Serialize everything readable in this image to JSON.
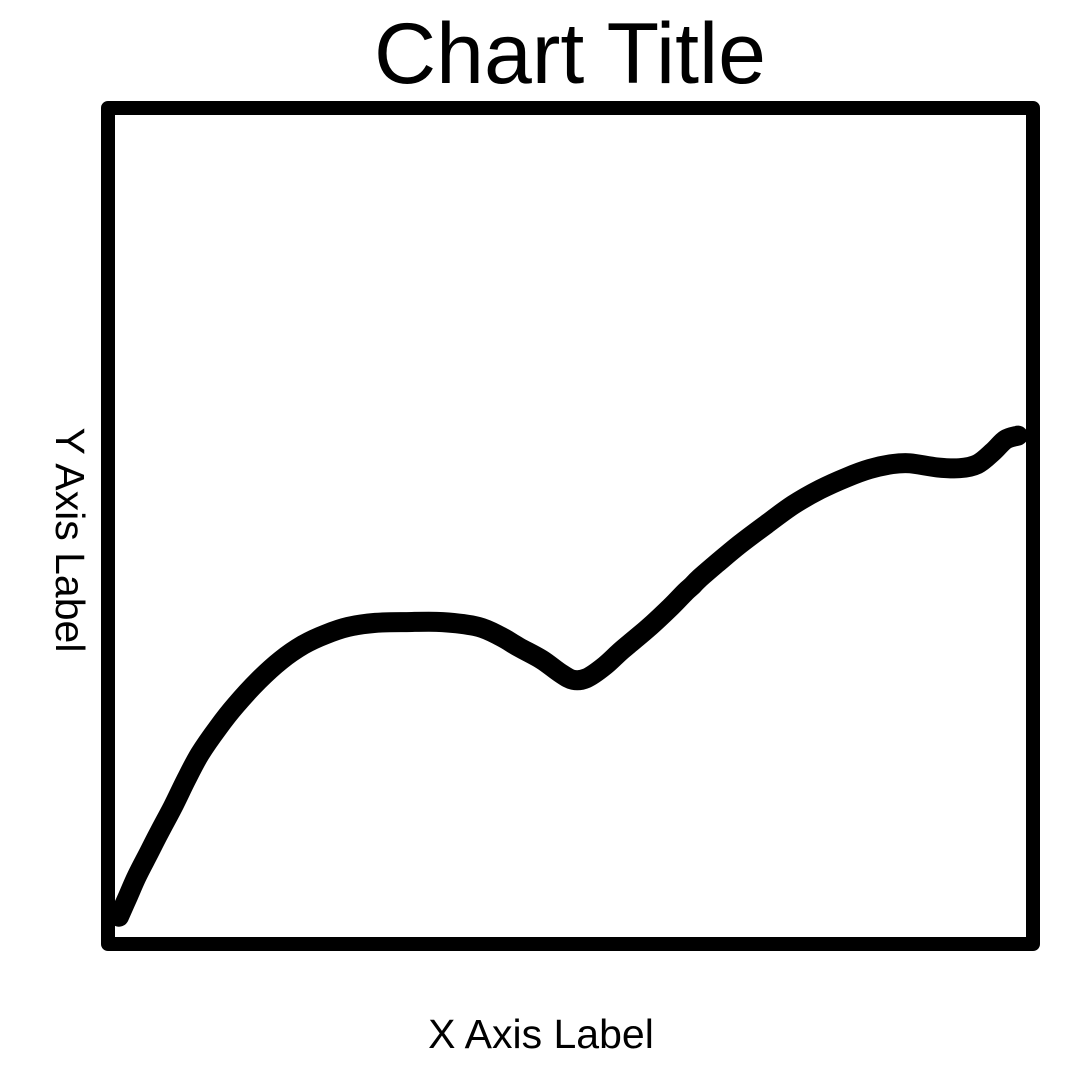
{
  "chart_data": {
    "type": "line",
    "title": "Chart Title",
    "xlabel": "X Axis Label",
    "ylabel": "Y Axis Label",
    "xlim": [
      0,
      100
    ],
    "ylim": [
      0,
      100
    ],
    "grid": false,
    "colors": {
      "line": "#000000",
      "frame": "#000000",
      "background": "#ffffff"
    },
    "series": [
      {
        "x": [
          0,
          1,
          2,
          3.3,
          4.5,
          6,
          7.5,
          9,
          11,
          13,
          15.5,
          18,
          20.5,
          23,
          25.5,
          28.5,
          32,
          36,
          40,
          42.5,
          44.5,
          47,
          49,
          50.5,
          52,
          54,
          56,
          59,
          61.5,
          63,
          63.8,
          64.5,
          66.5,
          69,
          72,
          75,
          78,
          81,
          83.5,
          86,
          88,
          91,
          93.5,
          95.5,
          97.2,
          98.6,
          100
        ],
        "y": [
          2,
          4.5,
          7,
          9.8,
          12.4,
          15.5,
          18.9,
          22,
          25.2,
          28,
          31,
          33.5,
          35.4,
          36.7,
          37.6,
          38.1,
          38.2,
          38.2,
          37.6,
          36.4,
          35.1,
          33.6,
          32,
          31.1,
          31.3,
          32.8,
          34.8,
          37.6,
          40.2,
          41.9,
          42.7,
          43.5,
          45.4,
          47.7,
          50.2,
          52.6,
          54.5,
          56,
          57,
          57.6,
          57.7,
          57.2,
          57.1,
          57.6,
          59.1,
          60.6,
          61.1
        ]
      }
    ]
  }
}
